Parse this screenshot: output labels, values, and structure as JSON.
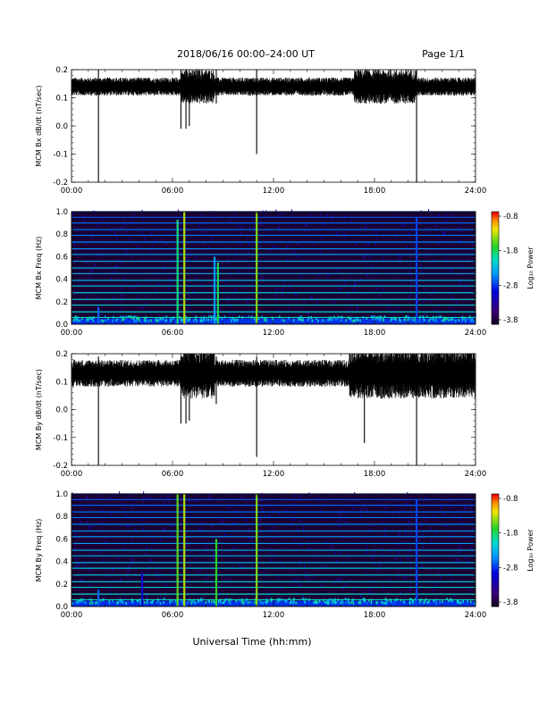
{
  "header": {
    "title": "2018/06/16  00:00–24:00 UT",
    "page": "Page 1/1"
  },
  "footer": {
    "xlabel": "Universal Time (hh:mm)"
  },
  "colorbar": {
    "ticks": [
      "-0.8",
      "-1.8",
      "-2.8",
      "-3.8"
    ],
    "label": "Log₁₀ Power"
  },
  "chart_data": [
    {
      "type": "line",
      "id": "bx_ts",
      "ylabel": "MCM Bx dB/dt (nT/sec)",
      "xlim": [
        0,
        24
      ],
      "ylim": [
        -0.2,
        0.2
      ],
      "x_ticks": [
        "00:00",
        "06:00",
        "12:00",
        "18:00",
        "24:00"
      ],
      "y_ticks": [
        "0.2",
        "0.1",
        "0.0",
        "-0.1",
        "-0.2"
      ],
      "baseline": 0.14,
      "noise_amplitude": 0.02,
      "noisy_intervals_hours": [
        [
          6.5,
          8.5
        ],
        [
          16.8,
          20.5
        ]
      ],
      "spikes": [
        {
          "t": 1.6,
          "min": -0.2
        },
        {
          "t": 6.5,
          "min": -0.01
        },
        {
          "t": 6.8,
          "min": -0.01
        },
        {
          "t": 7.0,
          "min": 0.0
        },
        {
          "t": 8.6,
          "min": 0.08
        },
        {
          "t": 11.0,
          "min": -0.1
        },
        {
          "t": 17.5,
          "min": 0.08
        },
        {
          "t": 20.5,
          "min": -0.2
        }
      ]
    },
    {
      "type": "heatmap",
      "id": "bx_spec",
      "ylabel": "MCM Bx Freq (Hz)",
      "xlim": [
        0,
        24
      ],
      "ylim": [
        0,
        1.0
      ],
      "x_ticks": [
        "00:00",
        "06:00",
        "12:00",
        "18:00",
        "24:00"
      ],
      "y_ticks": [
        "1.0",
        "0.8",
        "0.6",
        "0.4",
        "0.2",
        "0.0"
      ],
      "zlim": [
        -3.8,
        -0.8
      ],
      "harmonic_lines_hz": [
        0.06,
        0.11,
        0.17,
        0.22,
        0.28,
        0.34,
        0.39,
        0.45,
        0.5,
        0.56,
        0.62,
        0.67,
        0.73,
        0.79,
        0.84,
        0.9,
        0.95,
        1.0
      ],
      "impulse_events": [
        {
          "t": 1.6,
          "fmax": 0.15,
          "power": -2.6
        },
        {
          "t": 6.3,
          "fmax": 0.93,
          "power": -1.9
        },
        {
          "t": 6.7,
          "fmax": 1.0,
          "power": -1.4
        },
        {
          "t": 8.5,
          "fmax": 0.6,
          "power": -2.4
        },
        {
          "t": 8.7,
          "fmax": 0.55,
          "power": -1.8
        },
        {
          "t": 11.0,
          "fmax": 1.0,
          "power": -1.5
        },
        {
          "t": 20.5,
          "fmax": 0.95,
          "power": -2.7
        }
      ]
    },
    {
      "type": "line",
      "id": "by_ts",
      "ylabel": "MCM By dB/dt (nT/sec)",
      "xlim": [
        0,
        24
      ],
      "ylim": [
        -0.2,
        0.2
      ],
      "x_ticks": [
        "00:00",
        "06:00",
        "12:00",
        "18:00",
        "24:00"
      ],
      "y_ticks": [
        "0.2",
        "0.1",
        "0.0",
        "-0.1",
        "-0.2"
      ],
      "baseline": 0.13,
      "noise_amplitude": 0.03,
      "noisy_intervals_hours": [
        [
          6.5,
          8.5
        ],
        [
          16.5,
          24
        ]
      ],
      "spikes": [
        {
          "t": 1.6,
          "min": -0.2
        },
        {
          "t": 6.5,
          "min": -0.05
        },
        {
          "t": 6.8,
          "min": -0.05
        },
        {
          "t": 7.0,
          "min": -0.04
        },
        {
          "t": 8.6,
          "min": 0.02
        },
        {
          "t": 11.0,
          "min": -0.17
        },
        {
          "t": 17.4,
          "min": -0.12
        },
        {
          "t": 20.5,
          "min": -0.2
        }
      ]
    },
    {
      "type": "heatmap",
      "id": "by_spec",
      "ylabel": "MCM By Freq (Hz)",
      "xlim": [
        0,
        24
      ],
      "ylim": [
        0,
        1.0
      ],
      "x_ticks": [
        "00:00",
        "06:00",
        "12:00",
        "18:00",
        "24:00"
      ],
      "y_ticks": [
        "1.0",
        "0.8",
        "0.6",
        "0.4",
        "0.2",
        "0.0"
      ],
      "zlim": [
        -3.8,
        -0.8
      ],
      "harmonic_lines_hz": [
        0.06,
        0.11,
        0.17,
        0.22,
        0.28,
        0.34,
        0.39,
        0.45,
        0.5,
        0.56,
        0.62,
        0.67,
        0.73,
        0.79,
        0.84,
        0.9,
        0.95,
        1.0
      ],
      "impulse_events": [
        {
          "t": 1.6,
          "fmax": 0.15,
          "power": -2.6
        },
        {
          "t": 4.2,
          "fmax": 0.3,
          "power": -3.0
        },
        {
          "t": 6.3,
          "fmax": 1.0,
          "power": -1.6
        },
        {
          "t": 6.7,
          "fmax": 1.0,
          "power": -1.4
        },
        {
          "t": 8.6,
          "fmax": 0.6,
          "power": -1.7
        },
        {
          "t": 11.0,
          "fmax": 1.0,
          "power": -1.5
        },
        {
          "t": 20.5,
          "fmax": 0.95,
          "power": -2.7
        }
      ]
    }
  ]
}
